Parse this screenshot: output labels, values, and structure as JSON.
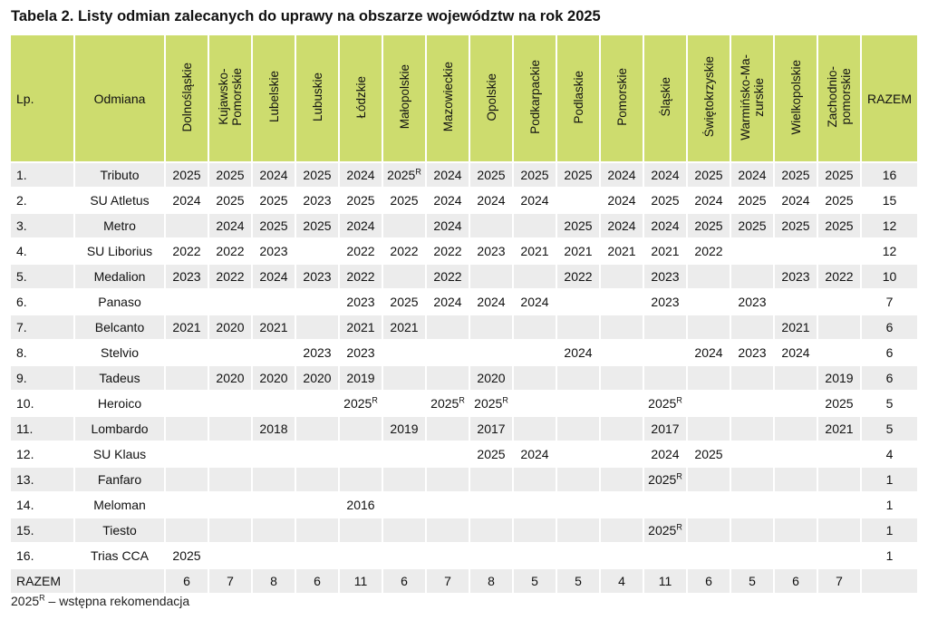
{
  "title": "Tabela 2. Listy odmian zalecanych do uprawy na obszarze województw na rok 2025",
  "headers": {
    "lp": "Lp.",
    "name": "Odmiana",
    "total": "RAZEM",
    "regions": [
      "Dolnośląskie",
      "Kujawsko-\nPomorskie",
      "Lubelskie",
      "Lubuskie",
      "Łódzkie",
      "Małopolskie",
      "Mazowieckie",
      "Opolskie",
      "Podkarpackie",
      "Podlaskie",
      "Pomorskie",
      "Śląskie",
      "Świętokrzyskie",
      "Warmińsko-Ma-\nzurskie",
      "Wielkopolskie",
      "Zachodnio-\npomorskie"
    ]
  },
  "rows": [
    {
      "lp": "1.",
      "name": "Tributo",
      "cells": [
        "2025",
        "2025",
        "2024",
        "2025",
        "2024",
        "2025R",
        "2024",
        "2025",
        "2025",
        "2025",
        "2024",
        "2024",
        "2025",
        "2024",
        "2025",
        "2025"
      ],
      "total": "16"
    },
    {
      "lp": "2.",
      "name": "SU Atletus",
      "cells": [
        "2024",
        "2025",
        "2025",
        "2023",
        "2025",
        "2025",
        "2024",
        "2024",
        "2024",
        "",
        "2024",
        "2025",
        "2024",
        "2025",
        "2024",
        "2025"
      ],
      "total": "15"
    },
    {
      "lp": "3.",
      "name": "Metro",
      "cells": [
        "",
        "2024",
        "2025",
        "2025",
        "2024",
        "",
        "2024",
        "",
        "",
        "2025",
        "2024",
        "2024",
        "2025",
        "2025",
        "2025",
        "2025"
      ],
      "total": "12"
    },
    {
      "lp": "4.",
      "name": "SU Liborius",
      "cells": [
        "2022",
        "2022",
        "2023",
        "",
        "2022",
        "2022",
        "2022",
        "2023",
        "2021",
        "2021",
        "2021",
        "2021",
        "2022",
        "",
        "",
        ""
      ],
      "total": "12"
    },
    {
      "lp": "5.",
      "name": "Medalion",
      "cells": [
        "2023",
        "2022",
        "2024",
        "2023",
        "2022",
        "",
        "2022",
        "",
        "",
        "2022",
        "",
        "2023",
        "",
        "",
        "2023",
        "2022"
      ],
      "total": "10"
    },
    {
      "lp": "6.",
      "name": "Panaso",
      "cells": [
        "",
        "",
        "",
        "",
        "2023",
        "2025",
        "2024",
        "2024",
        "2024",
        "",
        "",
        "2023",
        "",
        "2023",
        "",
        ""
      ],
      "total": "7"
    },
    {
      "lp": "7.",
      "name": "Belcanto",
      "cells": [
        "2021",
        "2020",
        "2021",
        "",
        "2021",
        "2021",
        "",
        "",
        "",
        "",
        "",
        "",
        "",
        "",
        "2021",
        ""
      ],
      "total": "6"
    },
    {
      "lp": "8.",
      "name": "Stelvio",
      "cells": [
        "",
        "",
        "",
        "2023",
        "2023",
        "",
        "",
        "",
        "",
        "2024",
        "",
        "",
        "2024",
        "2023",
        "2024",
        ""
      ],
      "total": "6"
    },
    {
      "lp": "9.",
      "name": "Tadeus",
      "cells": [
        "",
        "2020",
        "2020",
        "2020",
        "2019",
        "",
        "",
        "2020",
        "",
        "",
        "",
        "",
        "",
        "",
        "",
        "2019"
      ],
      "total": "6"
    },
    {
      "lp": "10.",
      "name": "Heroico",
      "cells": [
        "",
        "",
        "",
        "",
        "2025R",
        "",
        "2025R",
        "2025R",
        "",
        "",
        "",
        "2025R",
        "",
        "",
        "",
        "2025"
      ],
      "total": "5"
    },
    {
      "lp": "11.",
      "name": "Lombardo",
      "cells": [
        "",
        "",
        "2018",
        "",
        "",
        "2019",
        "",
        "2017",
        "",
        "",
        "",
        "2017",
        "",
        "",
        "",
        "2021"
      ],
      "total": "5"
    },
    {
      "lp": "12.",
      "name": "SU Klaus",
      "cells": [
        "",
        "",
        "",
        "",
        "",
        "",
        "",
        "2025",
        "2024",
        "",
        "",
        "2024",
        "2025",
        "",
        "",
        ""
      ],
      "total": "4"
    },
    {
      "lp": "13.",
      "name": "Fanfaro",
      "cells": [
        "",
        "",
        "",
        "",
        "",
        "",
        "",
        "",
        "",
        "",
        "",
        "2025R",
        "",
        "",
        "",
        ""
      ],
      "total": "1"
    },
    {
      "lp": "14.",
      "name": "Meloman",
      "cells": [
        "",
        "",
        "",
        "",
        "2016",
        "",
        "",
        "",
        "",
        "",
        "",
        "",
        "",
        "",
        "",
        ""
      ],
      "total": "1"
    },
    {
      "lp": "15.",
      "name": "Tiesto",
      "cells": [
        "",
        "",
        "",
        "",
        "",
        "",
        "",
        "",
        "",
        "",
        "",
        "2025R",
        "",
        "",
        "",
        ""
      ],
      "total": "1"
    },
    {
      "lp": "16.",
      "name": "Trias CCA",
      "cells": [
        "2025",
        "",
        "",
        "",
        "",
        "",
        "",
        "",
        "",
        "",
        "",
        "",
        "",
        "",
        "",
        ""
      ],
      "total": "1"
    }
  ],
  "footer": {
    "label": "RAZEM",
    "cells": [
      "6",
      "7",
      "8",
      "6",
      "11",
      "6",
      "7",
      "8",
      "5",
      "5",
      "4",
      "11",
      "6",
      "5",
      "6",
      "7"
    ],
    "total": ""
  },
  "legend": {
    "value": "2025",
    "mark": "R",
    "text": " – wstępna rekomendacja"
  }
}
